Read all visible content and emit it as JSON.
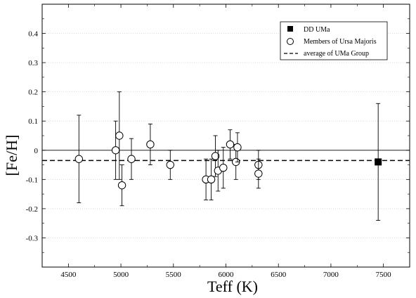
{
  "chart_data": {
    "type": "scatter",
    "title": "",
    "xlabel": "Teff (K)",
    "ylabel": "[Fe/H]",
    "xlim": [
      4250,
      7750
    ],
    "ylim": [
      -0.4,
      0.5
    ],
    "x_ticks": [
      4500,
      5000,
      5500,
      6000,
      6500,
      7000,
      7500
    ],
    "y_ticks": [
      0.4,
      0.3,
      0.2,
      0.1,
      0,
      -0.1,
      -0.2,
      -0.3
    ],
    "x_tick_labels": [
      "4500",
      "5000",
      "5500",
      "6000",
      "6500",
      "7000",
      "7500"
    ],
    "y_tick_labels": [
      "0.4",
      "0.3",
      "0.2",
      "0.1",
      "0",
      "-0.1",
      "-0.2",
      "-0.3"
    ],
    "grid": "dotted horizontal",
    "legend_position": "top-right",
    "legend": [
      {
        "label": "DD UMa",
        "marker": "filled-square"
      },
      {
        "label": "Members of Ursa Majoris",
        "marker": "open-circle"
      },
      {
        "label": "average of UMa Group",
        "marker": "dashed-line"
      }
    ],
    "series": [
      {
        "name": "DD UMa",
        "marker": "filled-square",
        "points": [
          {
            "x": 7450,
            "y": -0.04,
            "ylo": -0.24,
            "yhi": 0.16
          }
        ]
      },
      {
        "name": "Members of Ursa Majoris",
        "marker": "open-circle",
        "points": [
          {
            "x": 4600,
            "y": -0.03,
            "ylo": -0.18,
            "yhi": 0.12
          },
          {
            "x": 4950,
            "y": 0.0,
            "ylo": -0.1,
            "yhi": 0.1
          },
          {
            "x": 4985,
            "y": 0.05,
            "ylo": -0.1,
            "yhi": 0.2
          },
          {
            "x": 5010,
            "y": -0.12,
            "ylo": -0.19,
            "yhi": -0.05
          },
          {
            "x": 5100,
            "y": -0.03,
            "ylo": -0.1,
            "yhi": 0.04
          },
          {
            "x": 5280,
            "y": 0.02,
            "ylo": -0.05,
            "yhi": 0.09
          },
          {
            "x": 5470,
            "y": -0.05,
            "ylo": -0.1,
            "yhi": 0.0
          },
          {
            "x": 5810,
            "y": -0.1,
            "ylo": -0.17,
            "yhi": -0.03
          },
          {
            "x": 5860,
            "y": -0.1,
            "ylo": -0.17,
            "yhi": -0.03
          },
          {
            "x": 5900,
            "y": -0.02,
            "ylo": -0.09,
            "yhi": 0.05
          },
          {
            "x": 5925,
            "y": -0.07,
            "ylo": -0.14,
            "yhi": 0.0
          },
          {
            "x": 5975,
            "y": -0.06,
            "ylo": -0.13,
            "yhi": 0.01
          },
          {
            "x": 6040,
            "y": 0.02,
            "ylo": -0.03,
            "yhi": 0.07
          },
          {
            "x": 6095,
            "y": -0.04,
            "ylo": -0.1,
            "yhi": 0.02
          },
          {
            "x": 6110,
            "y": 0.01,
            "ylo": -0.04,
            "yhi": 0.06
          },
          {
            "x": 6310,
            "y": -0.05,
            "ylo": -0.1,
            "yhi": 0.0
          },
          {
            "x": 6310,
            "y": -0.08,
            "ylo": -0.13,
            "yhi": -0.03
          }
        ]
      }
    ],
    "reference_lines": [
      {
        "name": "zero",
        "y": 0,
        "style": "solid"
      },
      {
        "name": "average of UMa Group",
        "y": -0.035,
        "style": "dashed"
      }
    ]
  }
}
